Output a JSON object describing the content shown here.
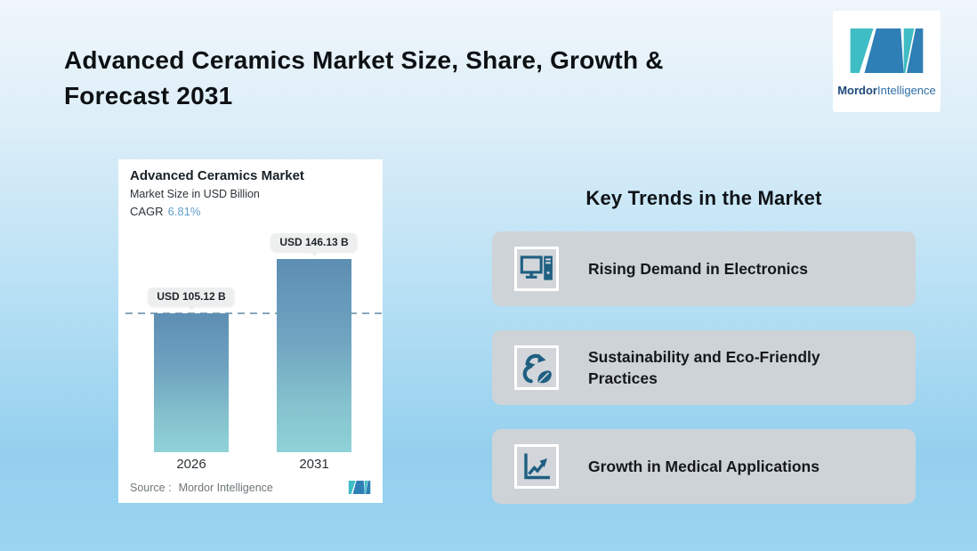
{
  "header": {
    "title": "Advanced Ceramics Market Size, Share, Growth &\nForecast 2031",
    "logo": {
      "brand_bold": "Mordor",
      "brand_regular": "Intelligence"
    }
  },
  "chart_card": {
    "title": "Advanced Ceramics Market",
    "subtitle": "Market Size in USD Billion",
    "cagr_label": "CAGR",
    "cagr_value": "6.81%",
    "source_label": "Source :",
    "source_value": "Mordor Intelligence"
  },
  "chart_data": {
    "type": "bar",
    "title": "Advanced Ceramics Market",
    "ylabel": "Market Size in USD Billion",
    "cagr_percent": 6.81,
    "categories": [
      "2026",
      "2031"
    ],
    "values": [
      105.12,
      146.13
    ],
    "value_labels": [
      "USD 105.12 B",
      "USD 146.13 B"
    ],
    "dashed_reference_value": 105.12,
    "grid": false,
    "legend": false,
    "source": "Mordor Intelligence"
  },
  "trends": {
    "heading": "Key Trends in the Market",
    "items": [
      {
        "icon": "desktop-computer-icon",
        "label": "Rising Demand in Electronics"
      },
      {
        "icon": "recycle-leaf-icon",
        "label": "Sustainability and Eco-Friendly Practices"
      },
      {
        "icon": "growth-line-chart-icon",
        "label": "Growth in Medical Applications"
      }
    ]
  },
  "colors": {
    "background_top": "#f0f6fb",
    "background_bottom": "#8accec",
    "bar_gradient_top": "#5d8eb3",
    "bar_gradient_bottom": "#90d2d8",
    "cagr_value": "#5f9ec9",
    "dashed_line": "#8aa6b8",
    "trend_card_bg": "#ced3d7",
    "trend_icon": "#1e5f82",
    "logo_teal": "#3fbdc4",
    "logo_blue": "#2e7fb5",
    "tooltip_bg": "#edefef"
  }
}
